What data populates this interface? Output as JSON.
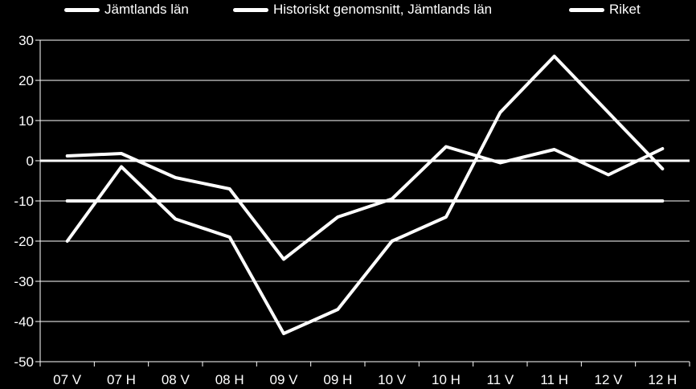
{
  "chart_data": {
    "type": "line",
    "categories": [
      "07 V",
      "07 H",
      "08 V",
      "08 H",
      "09 V",
      "09 H",
      "10 V",
      "10 H",
      "11 V",
      "11 H",
      "12 V",
      "12 H"
    ],
    "series": [
      {
        "name": "Jämtlands län",
        "values": [
          -20,
          -1.5,
          -14.5,
          -19,
          -43,
          -37,
          -20,
          -14,
          12,
          26,
          12,
          -2
        ]
      },
      {
        "name": "Historiskt genomsnitt, Jämtlands län",
        "values": [
          -10,
          -10,
          -10,
          -10,
          -10,
          -10,
          -10,
          -10,
          -10,
          -10,
          -10,
          -10
        ]
      },
      {
        "name": "Riket",
        "values": [
          1.2,
          1.8,
          -4.2,
          -7,
          -24.5,
          -14,
          -9.5,
          3.5,
          -0.5,
          2.8,
          -3.5,
          3
        ]
      }
    ],
    "yticks": [
      30,
      20,
      10,
      0,
      -10,
      -20,
      -30,
      -40,
      -50
    ],
    "ylim": [
      -50,
      30
    ],
    "grid": true,
    "legend_position": "top",
    "colors": {
      "background": "#000000",
      "line": "#ffffff",
      "grid": "#ffffff"
    }
  }
}
